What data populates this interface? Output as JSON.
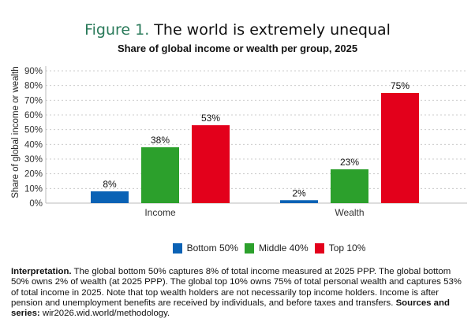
{
  "figure_label": "Figure 1.",
  "figure_title": "The world is extremely unequal",
  "chart_data": {
    "type": "bar",
    "title": "Share of global income or wealth per group, 2025",
    "ylabel": "Share of global income or wealth",
    "xlabel": "",
    "categories": [
      "Income",
      "Wealth"
    ],
    "series": [
      {
        "name": "Bottom 50%",
        "color": "#0a62b5",
        "values": [
          8,
          2
        ],
        "labels": [
          "8%",
          "2%"
        ]
      },
      {
        "name": "Middle 40%",
        "color": "#2ca02c",
        "values": [
          38,
          23
        ],
        "labels": [
          "38%",
          "23%"
        ]
      },
      {
        "name": "Top 10%",
        "color": "#e3001b",
        "values": [
          53,
          75
        ],
        "labels": [
          "53%",
          "75%"
        ]
      }
    ],
    "ylim": [
      0,
      90
    ],
    "yticks": [
      0,
      10,
      20,
      30,
      40,
      50,
      60,
      70,
      80,
      90
    ],
    "ytick_labels": [
      "0%",
      "10%",
      "20%",
      "30%",
      "40%",
      "50%",
      "60%",
      "70%",
      "80%",
      "90%"
    ],
    "grid": true,
    "legend_position": "bottom"
  },
  "note": {
    "interp_label": "Interpretation.",
    "interp_text": " The global bottom 50% captures 8% of total income measured at 2025 PPP. The global bottom 50% owns 2% of wealth (at 2025 PPP). The global top 10% owns 75% of total personal wealth and captures 53% of total income in 2025. Note that top wealth holders are not necessarily top income holders. Income is after pension and unemployment benefits are received by individuals, and before taxes and transfers. ",
    "sources_label": "Sources and series:",
    "sources_text": " wir2026.wid.world/methodology."
  }
}
